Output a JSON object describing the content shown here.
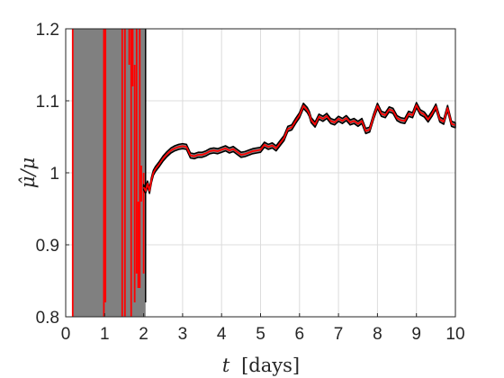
{
  "chart_data": {
    "type": "line",
    "xlabel": {
      "var": "t",
      "unit": "[days]"
    },
    "ylabel": {
      "text": "μ̂/μ"
    },
    "xlim": [
      0,
      10
    ],
    "ylim": [
      0.8,
      1.2
    ],
    "xticks": [
      "0",
      "1",
      "2",
      "3",
      "4",
      "5",
      "6",
      "7",
      "8",
      "9",
      "10"
    ],
    "yticks": [
      "0.8",
      "0.9",
      "1",
      "1.1",
      "1.2"
    ],
    "grid": true,
    "colors": {
      "estimate": "#ff0000",
      "band": "#808080",
      "band_edge": "#000000",
      "grid": "#dcdcdc",
      "axis": "#262626"
    },
    "unstable_region": {
      "x_start": 0.0,
      "x_end": 2.05
    },
    "unstable_spikes": [
      {
        "x": 0.18,
        "y_low": 0.8,
        "y_high": 1.2
      },
      {
        "x": 0.98,
        "y_low": 0.8,
        "y_high": 1.2
      },
      {
        "x": 1.02,
        "y_low": 0.82,
        "y_high": 1.2
      },
      {
        "x": 1.45,
        "y_low": 0.8,
        "y_high": 1.2
      },
      {
        "x": 1.52,
        "y_low": 0.8,
        "y_high": 1.2
      },
      {
        "x": 1.63,
        "y_low": 1.15,
        "y_high": 1.2
      },
      {
        "x": 1.68,
        "y_low": 0.8,
        "y_high": 1.2
      },
      {
        "x": 1.72,
        "y_low": 1.12,
        "y_high": 1.2
      },
      {
        "x": 1.77,
        "y_low": 0.82,
        "y_high": 1.15
      },
      {
        "x": 1.82,
        "y_low": 0.86,
        "y_high": 1.2
      },
      {
        "x": 1.86,
        "y_low": 0.84,
        "y_high": 0.96
      },
      {
        "x": 1.9,
        "y_low": 0.84,
        "y_high": 1.2
      },
      {
        "x": 1.94,
        "y_low": 0.96,
        "y_high": 1.01
      },
      {
        "x": 2.0,
        "y_low": 0.86,
        "y_high": 1.0
      }
    ],
    "series": [
      {
        "x": [
          2.0,
          2.05,
          2.1,
          2.15,
          2.2,
          2.25,
          2.3,
          2.4,
          2.5,
          2.6,
          2.7,
          2.8,
          2.9,
          3.0,
          3.1,
          3.2,
          3.3,
          3.4,
          3.5,
          3.6,
          3.7,
          3.8,
          3.9,
          4.0,
          4.1,
          4.2,
          4.3,
          4.4,
          4.5,
          4.6,
          4.7,
          4.8,
          4.9,
          5.0,
          5.1,
          5.2,
          5.3,
          5.4,
          5.5,
          5.6,
          5.7,
          5.8,
          5.9,
          6.0,
          6.1,
          6.2,
          6.25,
          6.3,
          6.4,
          6.5,
          6.6,
          6.7,
          6.8,
          6.9,
          7.0,
          7.1,
          7.2,
          7.3,
          7.4,
          7.5,
          7.6,
          7.7,
          7.8,
          7.9,
          8.0,
          8.1,
          8.2,
          8.3,
          8.4,
          8.5,
          8.6,
          8.7,
          8.8,
          8.9,
          9.0,
          9.1,
          9.2,
          9.3,
          9.4,
          9.5,
          9.6,
          9.7,
          9.8,
          9.9,
          10.0
        ],
        "values": [
          0.98,
          0.975,
          0.985,
          0.975,
          0.99,
          1.0,
          1.005,
          1.012,
          1.02,
          1.026,
          1.031,
          1.034,
          1.036,
          1.037,
          1.036,
          1.024,
          1.023,
          1.025,
          1.025,
          1.027,
          1.03,
          1.031,
          1.03,
          1.032,
          1.034,
          1.031,
          1.033,
          1.029,
          1.025,
          1.026,
          1.028,
          1.03,
          1.031,
          1.032,
          1.039,
          1.036,
          1.038,
          1.034,
          1.041,
          1.048,
          1.061,
          1.063,
          1.072,
          1.08,
          1.093,
          1.087,
          1.082,
          1.073,
          1.067,
          1.078,
          1.075,
          1.079,
          1.072,
          1.07,
          1.075,
          1.072,
          1.076,
          1.07,
          1.072,
          1.068,
          1.072,
          1.058,
          1.06,
          1.078,
          1.093,
          1.082,
          1.08,
          1.088,
          1.086,
          1.076,
          1.073,
          1.072,
          1.082,
          1.08,
          1.094,
          1.084,
          1.081,
          1.074,
          1.082,
          1.092,
          1.074,
          1.071,
          1.09,
          1.068,
          1.066
        ],
        "band_halfwidth": 0.0035
      }
    ]
  }
}
